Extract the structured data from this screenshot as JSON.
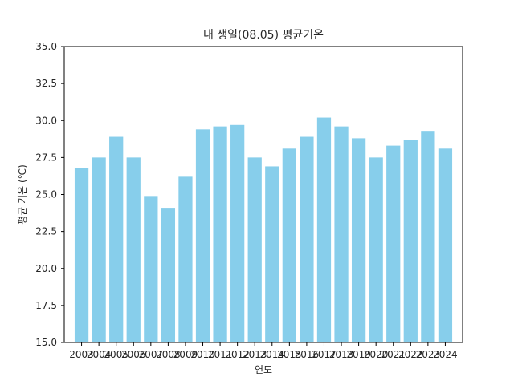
{
  "chart_data": {
    "type": "bar",
    "title": "내 생일(08.05) 평균기온",
    "xlabel": "연도",
    "ylabel": "평균 기온 (℃)",
    "categories": [
      "2003",
      "2004",
      "2005",
      "2006",
      "2007",
      "2008",
      "2009",
      "2010",
      "2011",
      "2012",
      "2013",
      "2014",
      "2015",
      "2016",
      "2017",
      "2018",
      "2019",
      "2020",
      "2021",
      "2022",
      "2023",
      "2024"
    ],
    "values": [
      26.8,
      27.5,
      28.9,
      27.5,
      24.9,
      24.1,
      26.2,
      29.4,
      29.6,
      29.7,
      27.5,
      26.9,
      28.1,
      28.9,
      30.2,
      29.6,
      28.8,
      27.5,
      28.3,
      28.7,
      29.3,
      28.1
    ],
    "ylim": [
      15.0,
      35.0
    ],
    "yticks": [
      "15.0",
      "17.5",
      "20.0",
      "22.5",
      "25.0",
      "27.5",
      "30.0",
      "32.5",
      "35.0"
    ],
    "bar_color": "#87ceeb",
    "grid": false,
    "legend": "none"
  }
}
